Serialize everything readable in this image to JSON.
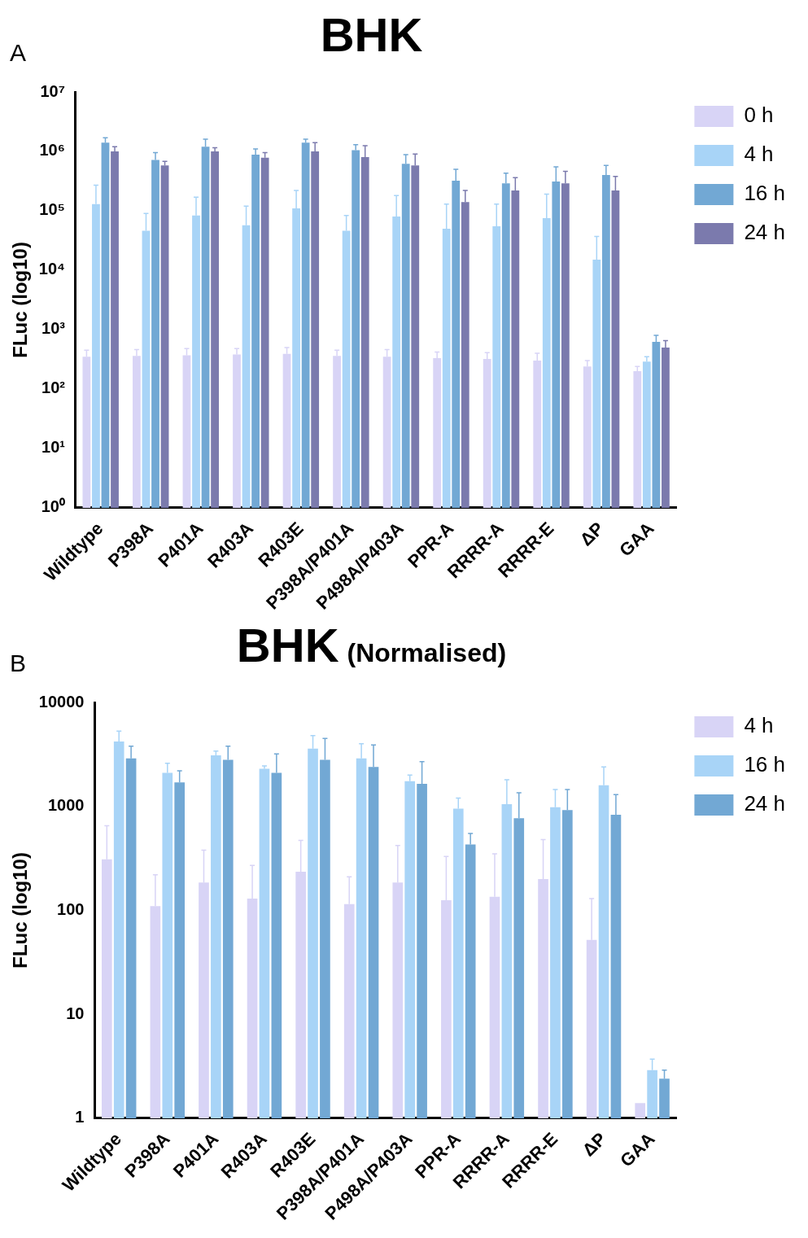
{
  "chart_data": [
    {
      "type": "bar",
      "title": "BHK",
      "annotations": [
        "A"
      ],
      "ylabel": "FLuc (log10)",
      "log": true,
      "legend": "top right",
      "grid": false,
      "categories": [
        "Wildtype",
        "P398A",
        "P401A",
        "R403A",
        "R403E",
        "P398A/P401A",
        "P498A/P403A",
        "PPR-A",
        "RRRR-A",
        "RRRR-E",
        "ΔP",
        "GAA"
      ],
      "ylim": [
        1,
        10000000
      ],
      "yticks": [
        {
          "value": 1,
          "label": "10⁰"
        },
        {
          "value": 10,
          "label": "10¹"
        },
        {
          "value": 100,
          "label": "10²"
        },
        {
          "value": 1000,
          "label": "10³"
        },
        {
          "value": 10000,
          "label": "10⁴"
        },
        {
          "value": 100000,
          "label": "10⁵"
        },
        {
          "value": 1000000,
          "label": "10⁶"
        },
        {
          "value": 10000000,
          "label": "10⁷"
        }
      ],
      "series": [
        {
          "name": "0 h",
          "color": "#d8d4f6",
          "values": [
            350,
            360,
            370,
            380,
            390,
            360,
            350,
            330,
            320,
            300,
            240,
            200
          ],
          "errors": [
            [
              350,
              450
            ],
            [
              360,
              460
            ],
            [
              370,
              480
            ],
            [
              380,
              480
            ],
            [
              390,
              500
            ],
            [
              360,
              450
            ],
            [
              350,
              460
            ],
            [
              330,
              420
            ],
            [
              320,
              410
            ],
            [
              300,
              400
            ],
            [
              240,
              300
            ],
            [
              200,
              240
            ]
          ]
        },
        {
          "name": "4 h",
          "color": "#a8d4f7",
          "values": [
            130000,
            46000,
            83000,
            57000,
            110000,
            46000,
            80000,
            50000,
            55000,
            75000,
            15000,
            290
          ],
          "errors": [
            [
              130000,
              270000
            ],
            [
              46000,
              90000
            ],
            [
              83000,
              170000
            ],
            [
              57000,
              120000
            ],
            [
              110000,
              220000
            ],
            [
              46000,
              83000
            ],
            [
              80000,
              180000
            ],
            [
              50000,
              130000
            ],
            [
              55000,
              130000
            ],
            [
              75000,
              190000
            ],
            [
              15000,
              37000
            ],
            [
              290,
              350
            ]
          ]
        },
        {
          "name": "16 h",
          "color": "#72a8d4",
          "values": [
            1400000,
            720000,
            1200000,
            880000,
            1400000,
            1050000,
            620000,
            320000,
            290000,
            310000,
            400000,
            620
          ],
          "errors": [
            [
              1400000,
              1700000
            ],
            [
              720000,
              950000
            ],
            [
              1200000,
              1600000
            ],
            [
              880000,
              1100000
            ],
            [
              1400000,
              1600000
            ],
            [
              1050000,
              1300000
            ],
            [
              620000,
              880000
            ],
            [
              320000,
              500000
            ],
            [
              290000,
              430000
            ],
            [
              310000,
              550000
            ],
            [
              400000,
              580000
            ],
            [
              620,
              800
            ]
          ]
        },
        {
          "name": "24 h",
          "color": "#7b7aad",
          "values": [
            1000000,
            580000,
            1000000,
            780000,
            1000000,
            800000,
            580000,
            140000,
            220000,
            290000,
            220000,
            500
          ],
          "errors": [
            [
              1000000,
              1200000
            ],
            [
              580000,
              680000
            ],
            [
              1000000,
              1150000
            ],
            [
              780000,
              950000
            ],
            [
              1000000,
              1400000
            ],
            [
              800000,
              1250000
            ],
            [
              580000,
              900000
            ],
            [
              140000,
              220000
            ],
            [
              220000,
              360000
            ],
            [
              290000,
              460000
            ],
            [
              220000,
              380000
            ],
            [
              500,
              650
            ]
          ]
        }
      ]
    },
    {
      "type": "bar",
      "title": "BHK",
      "subtitle": "(Normalised)",
      "annotations": [
        "B"
      ],
      "ylabel": "FLuc (log10)",
      "log": true,
      "legend": "top right",
      "grid": false,
      "categories": [
        "Wildtype",
        "P398A",
        "P401A",
        "R403A",
        "R403E",
        "P398A/P401A",
        "P498A/P403A",
        "PPR-A",
        "RRRR-A",
        "RRRR-E",
        "ΔP",
        "GAA"
      ],
      "ylim": [
        1,
        10000
      ],
      "yticks": [
        1,
        10,
        100,
        1000,
        10000
      ],
      "series": [
        {
          "name": "4 h",
          "color": "#d8d4f6",
          "values": [
            310,
            110,
            185,
            130,
            235,
            115,
            185,
            125,
            135,
            200,
            52,
            1.4
          ],
          "errors": [
            [
              310,
              650
            ],
            [
              110,
              220
            ],
            [
              185,
              380
            ],
            [
              130,
              270
            ],
            [
              235,
              470
            ],
            [
              115,
              210
            ],
            [
              185,
              420
            ],
            [
              125,
              330
            ],
            [
              135,
              350
            ],
            [
              200,
              480
            ],
            [
              52,
              130
            ],
            null
          ]
        },
        {
          "name": "16 h",
          "color": "#a8d4f7",
          "values": [
            4200,
            2100,
            3100,
            2300,
            3600,
            2900,
            1750,
            950,
            1050,
            980,
            1600,
            2.9
          ],
          "errors": [
            [
              4200,
              5300
            ],
            [
              2100,
              2600
            ],
            [
              3100,
              3400
            ],
            [
              2300,
              2450
            ],
            [
              3600,
              4800
            ],
            [
              2900,
              4000
            ],
            [
              1750,
              2000
            ],
            [
              950,
              1200
            ],
            [
              1050,
              1800
            ],
            [
              980,
              1450
            ],
            [
              1600,
              2400
            ],
            [
              2.9,
              3.7
            ]
          ]
        },
        {
          "name": "24 h",
          "color": "#72a8d4",
          "values": [
            2900,
            1700,
            2800,
            2100,
            2800,
            2400,
            1650,
            430,
            770,
            920,
            830,
            2.4
          ],
          "errors": [
            [
              2900,
              3800
            ],
            [
              1700,
              2200
            ],
            [
              2800,
              3800
            ],
            [
              2100,
              3200
            ],
            [
              2800,
              4500
            ],
            [
              2400,
              3900
            ],
            [
              1650,
              2700
            ],
            [
              430,
              550
            ],
            [
              770,
              1350
            ],
            [
              920,
              1450
            ],
            [
              830,
              1300
            ],
            [
              2.4,
              2.9
            ]
          ]
        }
      ]
    }
  ]
}
